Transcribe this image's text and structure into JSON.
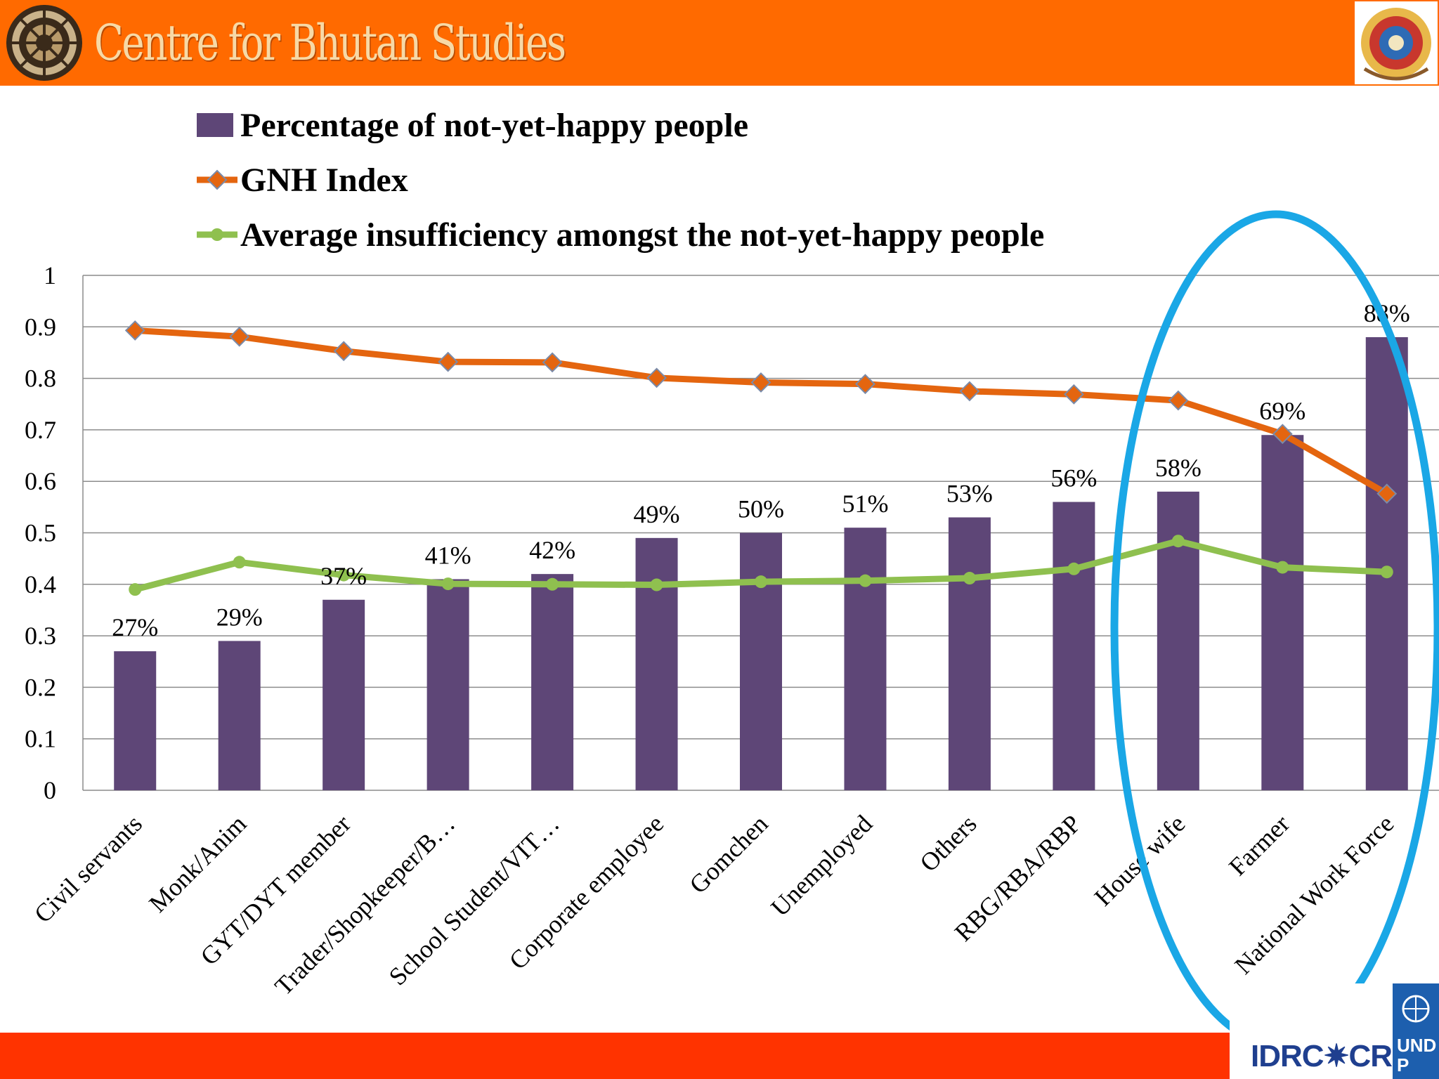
{
  "header": {
    "title": "Centre for Bhutan Studies"
  },
  "footer": {
    "idrc": "IDRC",
    "crdi": "CRDI",
    "undp": "UNDP"
  },
  "colors": {
    "header_bg": "#ff6a00",
    "footer_bar": "#ff3300",
    "bar": "#5e4677",
    "gnh_line": "#e4650f",
    "insufficiency_line": "#8fc04f",
    "highlight_ellipse": "#1aa7e6"
  },
  "chart_data": {
    "type": "bar",
    "categories": [
      "Civil servants",
      "Monk/Anim",
      "GYT/DYT member",
      "Trader/Shopkeeper/B…",
      "School Student/VIT…",
      "Corporate employee",
      "Gomchen",
      "Unemployed",
      "Others",
      "RBG/RBA/RBP",
      "House wife",
      "Farmer",
      "National Work Force"
    ],
    "series": [
      {
        "name": "Percentage of not-yet-happy people",
        "kind": "bar",
        "values": [
          0.27,
          0.29,
          0.37,
          0.41,
          0.42,
          0.49,
          0.5,
          0.51,
          0.53,
          0.56,
          0.58,
          0.69,
          0.88
        ],
        "labels": [
          "27%",
          "29%",
          "37%",
          "41%",
          "42%",
          "49%",
          "50%",
          "51%",
          "53%",
          "56%",
          "58%",
          "69%",
          "88%"
        ]
      },
      {
        "name": "GNH Index",
        "kind": "line",
        "marker": "diamond",
        "values": [
          0.893,
          0.881,
          0.853,
          0.832,
          0.831,
          0.801,
          0.792,
          0.789,
          0.775,
          0.769,
          0.757,
          0.692,
          0.576
        ]
      },
      {
        "name": "Average insufficiency amongst the not-yet-happy people",
        "kind": "line",
        "marker": "circle",
        "values": [
          0.39,
          0.443,
          0.418,
          0.401,
          0.4,
          0.399,
          0.405,
          0.407,
          0.412,
          0.43,
          0.484,
          0.433,
          0.424
        ]
      }
    ],
    "yticks": [
      "0",
      "0.1",
      "0.2",
      "0.3",
      "0.4",
      "0.5",
      "0.6",
      "0.7",
      "0.8",
      "0.9",
      "1"
    ],
    "ylim": [
      0,
      1
    ],
    "grid": true,
    "legend_position": "top",
    "annotation": "ellipse highlighting House wife, Farmer, National Work Force"
  }
}
